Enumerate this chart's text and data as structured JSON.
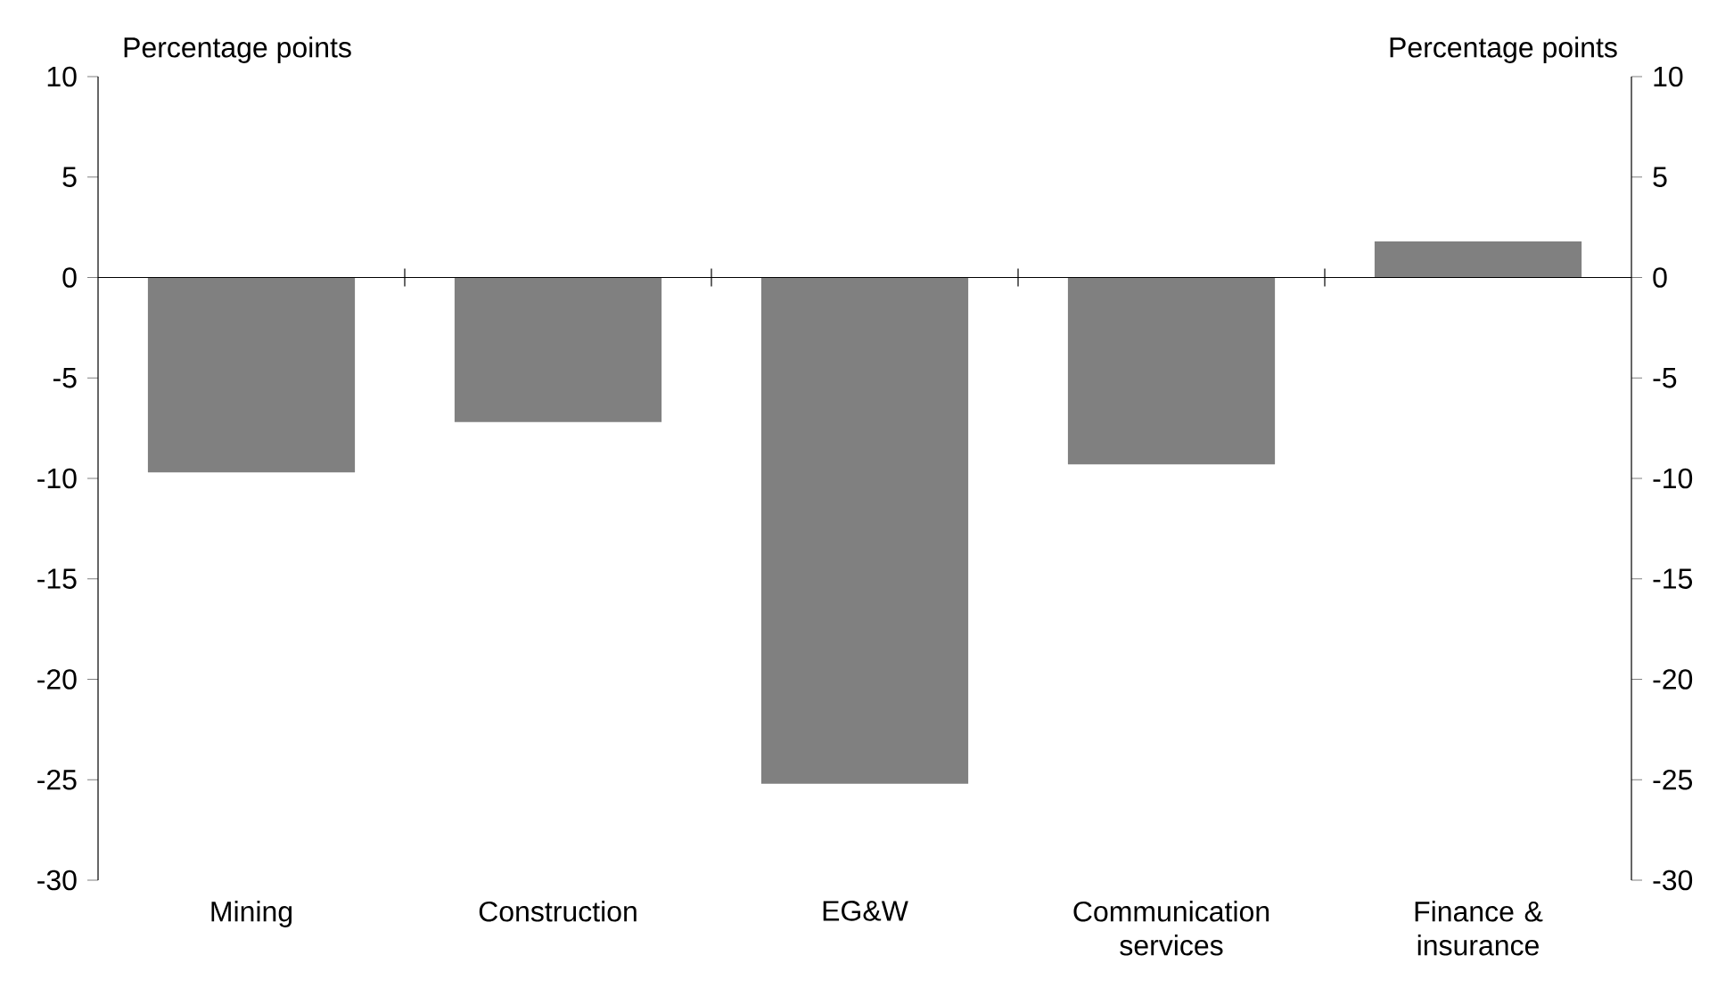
{
  "chart_data": {
    "type": "bar",
    "ylabel": "Percentage points",
    "y2label": "Percentage points",
    "categories": [
      "Mining",
      "Construction",
      "EG&W",
      "Communication services",
      "Finance & insurance"
    ],
    "values": [
      -9.7,
      -7.2,
      -25.2,
      -9.3,
      1.8
    ],
    "color": "#808080",
    "ylim": [
      -30,
      10
    ],
    "yticks": [
      -30,
      -25,
      -20,
      -15,
      -10,
      -5,
      0,
      5,
      10
    ],
    "y2lim": [
      -30,
      10
    ],
    "y2ticks": [
      -30,
      -25,
      -20,
      -15,
      -10,
      -5,
      0,
      5,
      10
    ]
  }
}
